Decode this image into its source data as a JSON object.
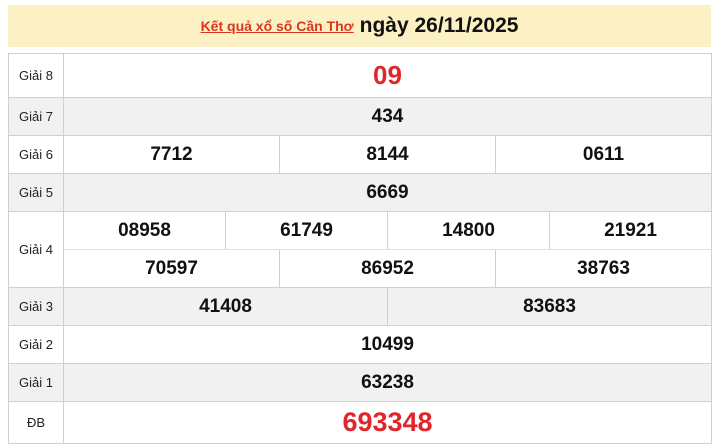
{
  "header": {
    "link_text": "Kết quả xổ số Cần Thơ",
    "date_text": "ngày 26/11/2025"
  },
  "prizes": [
    {
      "label": "Giải 8",
      "rows": [
        [
          "09"
        ]
      ]
    },
    {
      "label": "Giải 7",
      "rows": [
        [
          "434"
        ]
      ]
    },
    {
      "label": "Giải 6",
      "rows": [
        [
          "7712",
          "8144",
          "0611"
        ]
      ]
    },
    {
      "label": "Giải 5",
      "rows": [
        [
          "6669"
        ]
      ]
    },
    {
      "label": "Giải 4",
      "rows": [
        [
          "08958",
          "61749",
          "14800",
          "21921"
        ],
        [
          "70597",
          "86952",
          "38763"
        ]
      ]
    },
    {
      "label": "Giải 3",
      "rows": [
        [
          "41408",
          "83683"
        ]
      ]
    },
    {
      "label": "Giải 2",
      "rows": [
        [
          "10499"
        ]
      ]
    },
    {
      "label": "Giải 1",
      "rows": [
        [
          "63238"
        ]
      ]
    },
    {
      "label": "ĐB",
      "rows": [
        [
          "693348"
        ]
      ]
    }
  ],
  "colors": {
    "highlight": "#e0252b",
    "header_bg": "#fcf1c4",
    "link": "#d9361c"
  }
}
